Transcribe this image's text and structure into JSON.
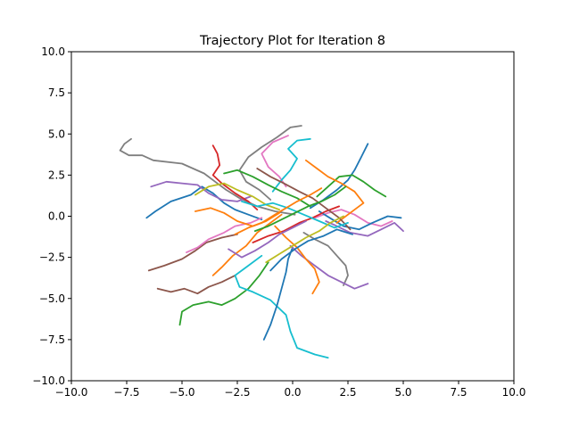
{
  "chart_data": {
    "type": "line",
    "title": "Trajectory Plot for Iteration 8",
    "xlabel": "",
    "ylabel": "",
    "xlim": [
      -10,
      10
    ],
    "ylim": [
      -10,
      10
    ],
    "xticks": [
      -10,
      -7.5,
      -5,
      -2.5,
      0,
      2.5,
      5,
      7.5,
      10
    ],
    "yticks": [
      -10,
      -7.5,
      -5,
      -2.5,
      0,
      2.5,
      5,
      7.5,
      10
    ],
    "xtick_labels": [
      "−10.0",
      "−7.5",
      "−5.0",
      "−2.5",
      "0.0",
      "2.5",
      "5.0",
      "7.5",
      "10.0"
    ],
    "ytick_labels": [
      "−10.0",
      "−7.5",
      "−5.0",
      "−2.5",
      "0.0",
      "2.5",
      "5.0",
      "7.5",
      "10.0"
    ],
    "grid": false,
    "legend": "none",
    "palette": [
      "#1f77b4",
      "#ff7f0e",
      "#2ca02c",
      "#d62728",
      "#9467bd",
      "#8c564b",
      "#e377c2",
      "#7f7f7f",
      "#bcbd22",
      "#17becf"
    ],
    "series": [
      {
        "color": "#7f7f7f",
        "points": [
          [
            -7.3,
            4.7
          ],
          [
            -7.6,
            4.4
          ],
          [
            -7.8,
            4.0
          ],
          [
            -7.4,
            3.7
          ],
          [
            -6.8,
            3.7
          ],
          [
            -6.3,
            3.4
          ],
          [
            -5.0,
            3.2
          ],
          [
            -4.0,
            2.6
          ],
          [
            -3.5,
            2.1
          ],
          [
            -3.0,
            1.6
          ],
          [
            -2.4,
            1.1
          ],
          [
            -1.6,
            0.6
          ],
          [
            -0.8,
            0.3
          ],
          [
            0.1,
            0.1
          ]
        ]
      },
      {
        "color": "#1f77b4",
        "points": [
          [
            -6.6,
            -0.1
          ],
          [
            -6.2,
            0.3
          ],
          [
            -5.5,
            0.9
          ],
          [
            -4.6,
            1.3
          ],
          [
            -4.1,
            1.8
          ],
          [
            -3.6,
            1.4
          ],
          [
            -3.1,
            0.8
          ],
          [
            -2.6,
            0.4
          ],
          [
            -2.0,
            0.1
          ],
          [
            -1.4,
            -0.2
          ]
        ]
      },
      {
        "color": "#9467bd",
        "points": [
          [
            -6.4,
            1.8
          ],
          [
            -5.7,
            2.1
          ],
          [
            -5.0,
            2.0
          ],
          [
            -4.3,
            1.9
          ],
          [
            -3.8,
            1.4
          ],
          [
            -3.2,
            1.0
          ],
          [
            -2.5,
            0.9
          ],
          [
            -1.9,
            1.2
          ]
        ]
      },
      {
        "color": "#8c564b",
        "points": [
          [
            -6.5,
            -3.3
          ],
          [
            -5.8,
            -3.0
          ],
          [
            -5.0,
            -2.6
          ],
          [
            -4.4,
            -2.1
          ],
          [
            -3.9,
            -1.6
          ],
          [
            -3.2,
            -1.3
          ],
          [
            -2.5,
            -1.1
          ]
        ]
      },
      {
        "color": "#8c564b",
        "points": [
          [
            -6.1,
            -4.4
          ],
          [
            -5.5,
            -4.6
          ],
          [
            -4.9,
            -4.4
          ],
          [
            -4.3,
            -4.7
          ],
          [
            -3.8,
            -4.3
          ],
          [
            -3.2,
            -4.0
          ],
          [
            -2.6,
            -3.6
          ]
        ]
      },
      {
        "color": "#2ca02c",
        "points": [
          [
            -5.1,
            -6.6
          ],
          [
            -5.0,
            -5.8
          ],
          [
            -4.5,
            -5.4
          ],
          [
            -3.8,
            -5.2
          ],
          [
            -3.2,
            -5.4
          ],
          [
            -2.6,
            -5.0
          ],
          [
            -2.0,
            -4.4
          ],
          [
            -1.5,
            -3.6
          ],
          [
            -1.1,
            -2.8
          ]
        ]
      },
      {
        "color": "#17becf",
        "points": [
          [
            1.6,
            -8.6
          ],
          [
            1.0,
            -8.4
          ],
          [
            0.2,
            -8.0
          ],
          [
            -0.1,
            -7.0
          ],
          [
            -0.3,
            -6.0
          ],
          [
            -1.0,
            -5.1
          ],
          [
            -1.8,
            -4.6
          ],
          [
            -2.4,
            -4.3
          ],
          [
            -2.6,
            -3.6
          ],
          [
            -2.0,
            -3.0
          ],
          [
            -1.4,
            -2.4
          ]
        ]
      },
      {
        "color": "#1f77b4",
        "points": [
          [
            -1.3,
            -7.5
          ],
          [
            -1.0,
            -6.6
          ],
          [
            -0.7,
            -5.4
          ],
          [
            -0.5,
            -4.4
          ],
          [
            -0.3,
            -3.4
          ],
          [
            -0.2,
            -2.6
          ],
          [
            0.0,
            -1.9
          ]
        ]
      },
      {
        "color": "#d62728",
        "points": [
          [
            -3.6,
            4.3
          ],
          [
            -3.4,
            3.8
          ],
          [
            -3.3,
            3.1
          ],
          [
            -3.6,
            2.5
          ],
          [
            -3.2,
            2.0
          ],
          [
            -2.6,
            1.4
          ],
          [
            -2.0,
            0.9
          ],
          [
            -1.6,
            0.4
          ]
        ]
      },
      {
        "color": "#7f7f7f",
        "points": [
          [
            0.4,
            5.5
          ],
          [
            -0.1,
            5.4
          ],
          [
            -0.7,
            4.8
          ],
          [
            -1.4,
            4.2
          ],
          [
            -2.0,
            3.6
          ],
          [
            -2.4,
            2.8
          ],
          [
            -2.1,
            2.1
          ],
          [
            -1.5,
            1.6
          ],
          [
            -1.0,
            1.0
          ]
        ]
      },
      {
        "color": "#e377c2",
        "points": [
          [
            -0.2,
            4.9
          ],
          [
            -0.9,
            4.5
          ],
          [
            -1.4,
            3.8
          ],
          [
            -1.1,
            3.0
          ],
          [
            -0.6,
            2.4
          ],
          [
            -0.3,
            1.8
          ]
        ]
      },
      {
        "color": "#17becf",
        "points": [
          [
            0.8,
            4.7
          ],
          [
            0.2,
            4.6
          ],
          [
            -0.2,
            4.1
          ],
          [
            0.2,
            3.5
          ],
          [
            -0.1,
            2.8
          ],
          [
            -0.5,
            2.2
          ],
          [
            -0.9,
            1.5
          ]
        ]
      },
      {
        "color": "#1f77b4",
        "points": [
          [
            3.4,
            4.4
          ],
          [
            3.1,
            3.6
          ],
          [
            2.8,
            2.8
          ],
          [
            2.5,
            2.2
          ],
          [
            2.0,
            1.6
          ],
          [
            1.4,
            1.0
          ],
          [
            0.8,
            0.5
          ]
        ]
      },
      {
        "color": "#2ca02c",
        "points": [
          [
            4.2,
            1.2
          ],
          [
            3.7,
            1.6
          ],
          [
            3.2,
            2.1
          ],
          [
            2.7,
            2.5
          ],
          [
            2.1,
            2.4
          ],
          [
            1.6,
            1.8
          ],
          [
            1.1,
            1.2
          ]
        ]
      },
      {
        "color": "#e377c2",
        "points": [
          [
            4.5,
            -0.3
          ],
          [
            4.0,
            -0.6
          ],
          [
            3.4,
            -0.4
          ],
          [
            2.8,
            0.1
          ],
          [
            2.2,
            0.4
          ],
          [
            1.6,
            0.2
          ],
          [
            1.0,
            -0.1
          ]
        ]
      },
      {
        "color": "#1f77b4",
        "points": [
          [
            4.9,
            -0.1
          ],
          [
            4.3,
            0.0
          ],
          [
            3.6,
            -0.4
          ],
          [
            3.0,
            -0.8
          ],
          [
            2.3,
            -0.6
          ],
          [
            1.8,
            -0.2
          ],
          [
            1.2,
            0.3
          ]
        ]
      },
      {
        "color": "#9467bd",
        "points": [
          [
            5.0,
            -0.9
          ],
          [
            4.6,
            -0.4
          ],
          [
            4.0,
            -0.8
          ],
          [
            3.4,
            -1.2
          ],
          [
            2.6,
            -1.0
          ],
          [
            2.0,
            -0.6
          ],
          [
            1.5,
            -0.3
          ]
        ]
      },
      {
        "color": "#7f7f7f",
        "points": [
          [
            2.3,
            -4.2
          ],
          [
            2.5,
            -3.6
          ],
          [
            2.4,
            -3.0
          ],
          [
            2.0,
            -2.4
          ],
          [
            1.6,
            -1.8
          ],
          [
            1.0,
            -1.4
          ],
          [
            0.5,
            -1.0
          ]
        ]
      },
      {
        "color": "#9467bd",
        "points": [
          [
            3.4,
            -4.1
          ],
          [
            2.8,
            -4.4
          ],
          [
            2.2,
            -4.0
          ],
          [
            1.6,
            -3.6
          ],
          [
            1.0,
            -3.0
          ],
          [
            0.4,
            -2.4
          ],
          [
            -0.1,
            -1.8
          ]
        ]
      },
      {
        "color": "#ff7f0e",
        "points": [
          [
            -3.6,
            -3.6
          ],
          [
            -3.2,
            -3.1
          ],
          [
            -2.7,
            -2.4
          ],
          [
            -2.1,
            -1.8
          ],
          [
            -1.6,
            -1.0
          ],
          [
            -1.0,
            -0.4
          ],
          [
            -0.5,
            0.1
          ]
        ]
      },
      {
        "color": "#e377c2",
        "points": [
          [
            -4.8,
            -2.2
          ],
          [
            -4.3,
            -1.9
          ],
          [
            -3.8,
            -1.4
          ],
          [
            -3.1,
            -1.0
          ],
          [
            -2.6,
            -0.6
          ],
          [
            -1.9,
            -0.4
          ],
          [
            -1.4,
            -0.1
          ]
        ]
      },
      {
        "color": "#bcbd22",
        "points": [
          [
            -4.4,
            1.3
          ],
          [
            -3.8,
            1.8
          ],
          [
            -3.1,
            2.0
          ],
          [
            -2.5,
            1.6
          ],
          [
            -1.8,
            1.2
          ],
          [
            -1.2,
            0.7
          ],
          [
            -0.6,
            0.4
          ]
        ]
      },
      {
        "color": "#ff7f0e",
        "points": [
          [
            -4.4,
            0.3
          ],
          [
            -3.7,
            0.5
          ],
          [
            -3.1,
            0.2
          ],
          [
            -2.5,
            -0.3
          ],
          [
            -1.8,
            -0.6
          ],
          [
            -1.2,
            -0.3
          ],
          [
            -0.6,
            0.2
          ]
        ]
      },
      {
        "color": "#2ca02c",
        "points": [
          [
            -3.1,
            2.6
          ],
          [
            -2.5,
            2.8
          ],
          [
            -1.8,
            2.4
          ],
          [
            -1.1,
            1.9
          ],
          [
            -0.5,
            1.5
          ],
          [
            0.2,
            1.1
          ],
          [
            0.8,
            0.6
          ]
        ]
      },
      {
        "color": "#d62728",
        "points": [
          [
            -1.8,
            -1.6
          ],
          [
            -1.1,
            -1.2
          ],
          [
            -0.4,
            -0.9
          ],
          [
            0.3,
            -0.4
          ],
          [
            0.9,
            -0.1
          ],
          [
            1.5,
            0.3
          ],
          [
            2.1,
            0.6
          ]
        ]
      },
      {
        "color": "#ff7f0e",
        "points": [
          [
            0.6,
            3.4
          ],
          [
            1.1,
            2.9
          ],
          [
            1.6,
            2.4
          ],
          [
            2.2,
            2.0
          ],
          [
            2.8,
            1.5
          ],
          [
            3.2,
            0.8
          ],
          [
            2.6,
            0.2
          ],
          [
            2.0,
            -0.4
          ]
        ]
      },
      {
        "color": "#ff7f0e",
        "points": [
          [
            0.9,
            -4.7
          ],
          [
            1.2,
            -4.0
          ],
          [
            1.0,
            -3.2
          ],
          [
            0.6,
            -2.6
          ],
          [
            0.2,
            -1.9
          ],
          [
            -0.3,
            -1.3
          ],
          [
            -0.8,
            -0.6
          ]
        ]
      },
      {
        "color": "#8c564b",
        "points": [
          [
            -1.6,
            2.9
          ],
          [
            -1.0,
            2.4
          ],
          [
            -0.4,
            2.0
          ],
          [
            0.3,
            1.5
          ],
          [
            0.9,
            1.1
          ],
          [
            1.5,
            0.5
          ],
          [
            2.1,
            -0.1
          ],
          [
            2.6,
            -0.8
          ]
        ]
      },
      {
        "color": "#17becf",
        "points": [
          [
            -2.3,
            0.9
          ],
          [
            -1.6,
            0.6
          ],
          [
            -0.9,
            0.8
          ],
          [
            -0.2,
            0.5
          ],
          [
            0.5,
            0.1
          ],
          [
            1.2,
            -0.3
          ],
          [
            1.9,
            -0.7
          ],
          [
            2.5,
            -0.4
          ]
        ]
      },
      {
        "color": "#bcbd22",
        "points": [
          [
            -1.2,
            -2.8
          ],
          [
            -0.6,
            -2.3
          ],
          [
            0.0,
            -1.8
          ],
          [
            0.6,
            -1.3
          ],
          [
            1.2,
            -0.9
          ],
          [
            1.7,
            -0.4
          ],
          [
            2.3,
            0.0
          ]
        ]
      },
      {
        "color": "#9467bd",
        "points": [
          [
            -2.9,
            -2.0
          ],
          [
            -2.3,
            -2.5
          ],
          [
            -1.7,
            -2.1
          ],
          [
            -1.1,
            -1.6
          ],
          [
            -0.6,
            -1.1
          ],
          [
            0.0,
            -0.7
          ],
          [
            0.6,
            -0.3
          ]
        ]
      },
      {
        "color": "#1f77b4",
        "points": [
          [
            -1.0,
            -3.3
          ],
          [
            -0.5,
            -2.6
          ],
          [
            0.1,
            -2.0
          ],
          [
            0.7,
            -1.5
          ],
          [
            1.4,
            -1.2
          ],
          [
            2.0,
            -0.8
          ],
          [
            2.7,
            -1.1
          ]
        ]
      },
      {
        "color": "#2ca02c",
        "points": [
          [
            2.4,
            1.8
          ],
          [
            1.9,
            1.3
          ],
          [
            1.3,
            0.9
          ],
          [
            0.7,
            0.6
          ],
          [
            0.1,
            0.2
          ],
          [
            -0.5,
            -0.2
          ],
          [
            -1.1,
            -0.6
          ],
          [
            -1.7,
            -0.9
          ]
        ]
      },
      {
        "color": "#ff7f0e",
        "points": [
          [
            1.3,
            1.7
          ],
          [
            0.8,
            1.3
          ],
          [
            0.2,
            0.9
          ],
          [
            -0.3,
            0.5
          ],
          [
            -0.8,
            0.1
          ],
          [
            -1.4,
            -0.4
          ],
          [
            -2.0,
            -0.7
          ],
          [
            -2.6,
            -1.1
          ]
        ]
      }
    ]
  }
}
